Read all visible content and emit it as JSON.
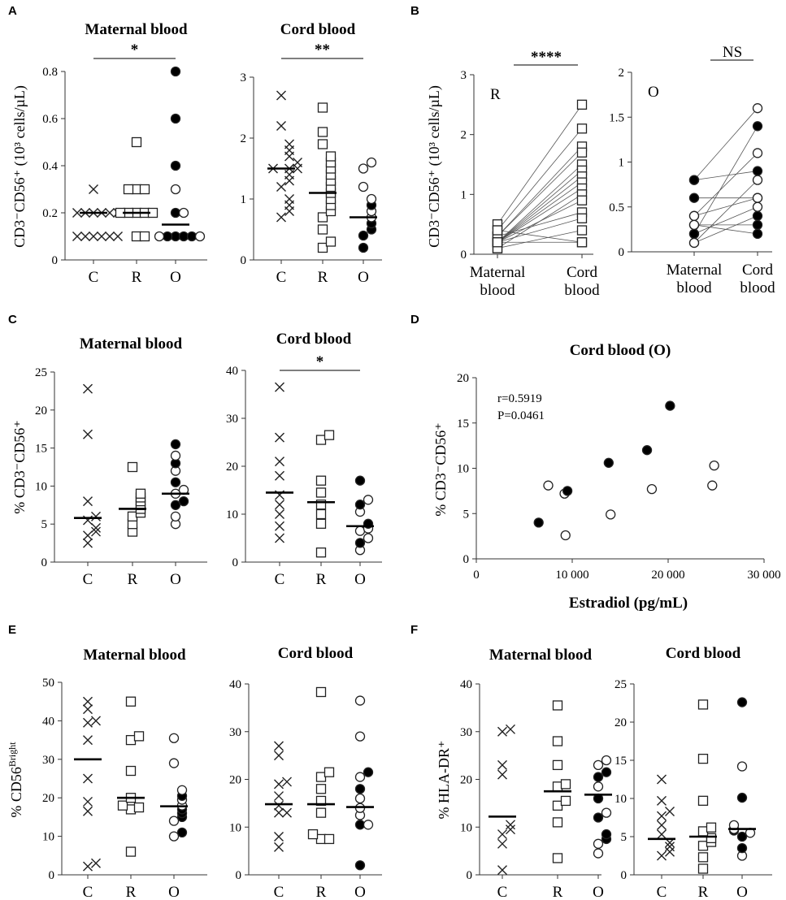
{
  "panels": [
    {
      "letter": "A"
    },
    {
      "letter": "B"
    },
    {
      "letter": "C"
    },
    {
      "letter": "D"
    },
    {
      "letter": "E"
    },
    {
      "letter": "F"
    }
  ],
  "chart_data": [
    {
      "id": "A1",
      "panel": "A",
      "type": "scatter",
      "title": "Maternal blood",
      "ylabel": "CD3⁻CD56⁺ (10³ cells/µL)",
      "ylim": [
        0,
        0.8
      ],
      "yticks": [
        "0",
        "0.2",
        "0.4",
        "0.6",
        "0.8"
      ],
      "categories": [
        "C",
        "R",
        "O"
      ],
      "groups": [
        {
          "category": "C",
          "marker": "cross",
          "values": [
            0.3,
            0.2,
            0.2,
            0.2,
            0.2,
            0.2,
            0.2,
            0.1,
            0.1,
            0.1,
            0.1,
            0.1,
            0.1
          ],
          "median": 0.2
        },
        {
          "category": "R",
          "marker": "square",
          "values": [
            0.5,
            0.3,
            0.3,
            0.3,
            0.2,
            0.2,
            0.2,
            0.2,
            0.2,
            0.1,
            0.1
          ],
          "median": 0.2
        },
        {
          "category": "O",
          "marker": "circle",
          "values": [
            0.8,
            0.6,
            0.4,
            0.2,
            0.1,
            0.1,
            0.1,
            0.1
          ],
          "filled": [
            true,
            true,
            true,
            true,
            true,
            true,
            true,
            true
          ],
          "extra_open": [
            0.3,
            0.2,
            0.1,
            0.1
          ],
          "median": 0.15
        }
      ],
      "significance": [
        {
          "label": "*",
          "from": "C",
          "to": "O"
        }
      ]
    },
    {
      "id": "A2",
      "panel": "A",
      "type": "scatter",
      "title": "Cord blood",
      "ylim": [
        0,
        3
      ],
      "yticks": [
        "0",
        "1",
        "2",
        "3"
      ],
      "categories": [
        "C",
        "R",
        "O"
      ],
      "groups": [
        {
          "category": "C",
          "marker": "cross",
          "values": [
            2.7,
            2.2,
            1.9,
            1.8,
            1.7,
            1.6,
            1.5,
            1.5,
            1.5,
            1.4,
            1.3,
            1.2,
            1.0,
            0.9,
            0.8,
            0.7
          ],
          "median": 1.5
        },
        {
          "category": "R",
          "marker": "square",
          "values": [
            2.5,
            2.1,
            1.9,
            1.7,
            1.6,
            1.5,
            1.4,
            1.3,
            1.2,
            1.1,
            1.0,
            0.9,
            0.8,
            0.7,
            0.5,
            0.3,
            0.2
          ],
          "median": 1.1
        },
        {
          "category": "O",
          "marker": "circle",
          "values": [
            1.6,
            1.5,
            1.2,
            1.0,
            0.9,
            0.8,
            0.7,
            0.6,
            0.5,
            0.4,
            0.2
          ],
          "filled": [
            false,
            false,
            false,
            false,
            true,
            false,
            false,
            true,
            true,
            true,
            true
          ],
          "median": 0.7
        }
      ],
      "significance": [
        {
          "label": "**",
          "from": "C",
          "to": "O"
        }
      ]
    },
    {
      "id": "B1",
      "panel": "B",
      "type": "paired",
      "label": "R",
      "ylabel": "CD3⁻CD56⁺ (10³ cells/µL)",
      "ylim": [
        0,
        3
      ],
      "yticks": [
        "0",
        "1",
        "2",
        "3"
      ],
      "categories": [
        "Maternal\nblood",
        "Cord\nblood"
      ],
      "pairs": [
        [
          0.5,
          2.5
        ],
        [
          0.4,
          2.1
        ],
        [
          0.3,
          1.8
        ],
        [
          0.3,
          1.7
        ],
        [
          0.2,
          1.5
        ],
        [
          0.2,
          1.4
        ],
        [
          0.2,
          1.3
        ],
        [
          0.2,
          1.2
        ],
        [
          0.2,
          1.1
        ],
        [
          0.1,
          1.0
        ],
        [
          0.2,
          0.9
        ],
        [
          0.3,
          0.7
        ],
        [
          0.2,
          0.6
        ],
        [
          0.1,
          0.4
        ],
        [
          0.4,
          0.2
        ],
        [
          0.2,
          0.2
        ]
      ],
      "significance": [
        {
          "label": "****"
        }
      ]
    },
    {
      "id": "B2",
      "panel": "B",
      "type": "paired",
      "label": "O",
      "ylim": [
        0,
        2
      ],
      "yticks": [
        "0",
        "0.5",
        "1",
        "1.5",
        "2"
      ],
      "categories": [
        "Maternal\nblood",
        "Cord\nblood"
      ],
      "pairs": [
        [
          0.8,
          1.6
        ],
        [
          0.8,
          0.9
        ],
        [
          0.6,
          0.6
        ],
        [
          0.4,
          1.1
        ],
        [
          0.3,
          0.3
        ],
        [
          0.2,
          1.4
        ],
        [
          0.2,
          0.5
        ],
        [
          0.1,
          0.8
        ],
        [
          0.1,
          0.4
        ],
        [
          0.3,
          0.2
        ],
        [
          0.4,
          0.6
        ]
      ],
      "filled_maternal": [
        true,
        true,
        true,
        true,
        false,
        true,
        true,
        true,
        false,
        false,
        false
      ],
      "filled_cord": [
        false,
        true,
        false,
        false,
        true,
        true,
        false,
        false,
        true,
        true,
        false
      ],
      "significance": [
        {
          "label": "NS"
        }
      ]
    },
    {
      "id": "C1",
      "panel": "C",
      "type": "scatter",
      "title": "Maternal blood",
      "ylabel": "% CD3⁻CD56⁺",
      "ylim": [
        0,
        25
      ],
      "yticks": [
        "0",
        "5",
        "10",
        "15",
        "20",
        "25"
      ],
      "categories": [
        "C",
        "R",
        "O"
      ],
      "groups": [
        {
          "category": "C",
          "marker": "cross",
          "values": [
            22.8,
            16.8,
            8.0,
            6.0,
            5.5,
            4.5,
            4.0,
            3.5,
            2.5
          ],
          "median": 5.8
        },
        {
          "category": "R",
          "marker": "square",
          "values": [
            12.5,
            9.0,
            8.5,
            8.0,
            7.5,
            7.0,
            6.5,
            6.0,
            5.0,
            4.0
          ],
          "median": 7.0
        },
        {
          "category": "O",
          "marker": "circle",
          "values": [
            15.5,
            14.0,
            13.0,
            12.0,
            10.5,
            9.5,
            9.0,
            8.0,
            7.5,
            6.0,
            5.0
          ],
          "filled": [
            true,
            false,
            true,
            false,
            true,
            false,
            false,
            true,
            true,
            false,
            false
          ],
          "median": 9.0
        }
      ],
      "significance": []
    },
    {
      "id": "C2",
      "panel": "C",
      "type": "scatter",
      "title": "Cord blood",
      "ylim": [
        0,
        40
      ],
      "yticks": [
        "0",
        "10",
        "20",
        "30",
        "40"
      ],
      "categories": [
        "C",
        "R",
        "O"
      ],
      "groups": [
        {
          "category": "C",
          "marker": "cross",
          "values": [
            36.5,
            26.0,
            21.0,
            18.0,
            14.0,
            12.0,
            10.0,
            7.5,
            5.0
          ],
          "median": 14.5
        },
        {
          "category": "R",
          "marker": "square",
          "values": [
            26.5,
            25.5,
            17.0,
            14.5,
            12.0,
            10.0,
            8.0,
            2.0
          ],
          "median": 12.5
        },
        {
          "category": "O",
          "marker": "circle",
          "values": [
            17.0,
            13.0,
            12.0,
            10.5,
            8.0,
            7.0,
            6.5,
            5.0,
            4.0,
            2.5
          ],
          "filled": [
            true,
            false,
            true,
            false,
            true,
            false,
            false,
            false,
            true,
            false
          ],
          "median": 7.5
        }
      ],
      "significance": [
        {
          "label": "*",
          "from": "C",
          "to": "O"
        }
      ]
    },
    {
      "id": "D",
      "panel": "D",
      "type": "scatter",
      "title": "Cord blood (O)",
      "xlabel": "Estradiol (pg/mL)",
      "ylabel": "% CD3⁻CD56⁺",
      "xlim": [
        0,
        30000
      ],
      "ylim": [
        0,
        20
      ],
      "xticks": [
        "0",
        "10 000",
        "20 000",
        "30 000"
      ],
      "yticks": [
        "0",
        "5",
        "10",
        "15",
        "20"
      ],
      "annotation": [
        "r=0.5919",
        "P=0.0461"
      ],
      "points": [
        {
          "x": 6500,
          "y": 4.0,
          "filled": true
        },
        {
          "x": 7500,
          "y": 8.1,
          "filled": false
        },
        {
          "x": 9200,
          "y": 7.2,
          "filled": false
        },
        {
          "x": 9500,
          "y": 7.5,
          "filled": true
        },
        {
          "x": 9300,
          "y": 2.6,
          "filled": false
        },
        {
          "x": 13800,
          "y": 10.6,
          "filled": true
        },
        {
          "x": 14000,
          "y": 4.9,
          "filled": false
        },
        {
          "x": 17800,
          "y": 12.0,
          "filled": true
        },
        {
          "x": 18300,
          "y": 7.7,
          "filled": false
        },
        {
          "x": 20200,
          "y": 16.9,
          "filled": true
        },
        {
          "x": 24600,
          "y": 8.1,
          "filled": false
        },
        {
          "x": 24800,
          "y": 10.3,
          "filled": false
        }
      ]
    },
    {
      "id": "E1",
      "panel": "E",
      "type": "scatter",
      "title": "Maternal blood",
      "ylabel": "% CD56Bright",
      "ylim": [
        0,
        50
      ],
      "yticks": [
        "0",
        "10",
        "20",
        "30",
        "40",
        "50"
      ],
      "categories": [
        "C",
        "R",
        "O"
      ],
      "groups": [
        {
          "category": "C",
          "marker": "cross",
          "values": [
            45.0,
            43.0,
            40.0,
            39.5,
            35.0,
            25.0,
            19.0,
            16.5,
            3.0,
            2.2
          ],
          "median": 30.0
        },
        {
          "category": "R",
          "marker": "square",
          "values": [
            45.0,
            36.0,
            35.0,
            27.0,
            20.0,
            18.0,
            17.5,
            17.0,
            6.0
          ],
          "median": 20.0
        },
        {
          "category": "O",
          "marker": "circle",
          "values": [
            35.5,
            29.0,
            22.0,
            20.5,
            19.5,
            18.0,
            17.0,
            16.0,
            15.0,
            14.0,
            11.0,
            10.0
          ],
          "filled": [
            false,
            false,
            false,
            true,
            false,
            false,
            true,
            true,
            true,
            false,
            true,
            false
          ],
          "median": 17.8
        }
      ],
      "significance": []
    },
    {
      "id": "E2",
      "panel": "E",
      "type": "scatter",
      "title": "Cord blood",
      "ylim": [
        0,
        40
      ],
      "yticks": [
        "0",
        "10",
        "20",
        "30",
        "40"
      ],
      "categories": [
        "C",
        "R",
        "O"
      ],
      "groups": [
        {
          "category": "C",
          "marker": "cross",
          "values": [
            27.0,
            25.0,
            19.5,
            19.0,
            16.5,
            14.5,
            13.0,
            13.0,
            8.0,
            5.8
          ],
          "median": 14.8
        },
        {
          "category": "R",
          "marker": "square",
          "values": [
            38.3,
            21.5,
            20.5,
            18.0,
            15.5,
            13.0,
            8.5,
            7.5,
            7.5
          ],
          "median": 14.8
        },
        {
          "category": "O",
          "marker": "circle",
          "values": [
            36.5,
            29.0,
            21.5,
            20.5,
            18.0,
            16.0,
            14.0,
            12.5,
            10.5,
            10.5,
            2.0
          ],
          "filled": [
            false,
            false,
            true,
            false,
            true,
            false,
            false,
            false,
            true,
            false,
            true
          ],
          "median": 14.2
        }
      ],
      "significance": []
    },
    {
      "id": "F1",
      "panel": "F",
      "type": "scatter",
      "title": "Maternal blood",
      "ylabel": "% HLA-DR⁺",
      "ylim": [
        0,
        40
      ],
      "yticks": [
        "0",
        "10",
        "20",
        "30",
        "40"
      ],
      "categories": [
        "C",
        "R",
        "O"
      ],
      "groups": [
        {
          "category": "C",
          "marker": "cross",
          "values": [
            30.5,
            30.0,
            23.0,
            21.0,
            10.5,
            9.5,
            8.5,
            6.5,
            1.0
          ],
          "median": 12.2
        },
        {
          "category": "R",
          "marker": "square",
          "values": [
            35.5,
            28.0,
            23.0,
            19.0,
            18.5,
            15.5,
            14.5,
            11.0,
            3.5
          ],
          "median": 17.5
        },
        {
          "category": "O",
          "marker": "circle",
          "values": [
            24.0,
            23.0,
            21.5,
            20.5,
            18.5,
            16.0,
            13.0,
            12.0,
            8.5,
            7.5,
            6.5,
            4.5
          ],
          "filled": [
            false,
            false,
            true,
            true,
            false,
            true,
            false,
            true,
            true,
            true,
            false,
            false
          ],
          "median": 16.8
        }
      ],
      "significance": []
    },
    {
      "id": "F2",
      "panel": "F",
      "type": "scatter",
      "title": "Cord blood",
      "ylim": [
        0,
        25
      ],
      "yticks": [
        "0",
        "5",
        "10",
        "15",
        "20",
        "25"
      ],
      "categories": [
        "C",
        "R",
        "O"
      ],
      "groups": [
        {
          "category": "C",
          "marker": "cross",
          "values": [
            12.5,
            9.7,
            8.3,
            7.7,
            6.5,
            5.3,
            4.2,
            3.7,
            3.0,
            2.5
          ],
          "median": 4.7
        },
        {
          "category": "R",
          "marker": "square",
          "values": [
            22.3,
            15.2,
            9.7,
            6.2,
            5.7,
            4.8,
            4.3,
            3.8,
            2.3,
            0.8
          ],
          "median": 5.0
        },
        {
          "category": "O",
          "marker": "circle",
          "values": [
            22.6,
            14.2,
            10.1,
            6.5,
            6.0,
            5.8,
            5.5,
            5.0,
            3.5,
            2.5
          ],
          "filled": [
            true,
            false,
            true,
            false,
            false,
            true,
            false,
            true,
            true,
            false
          ],
          "median": 6.0
        }
      ],
      "significance": []
    }
  ]
}
